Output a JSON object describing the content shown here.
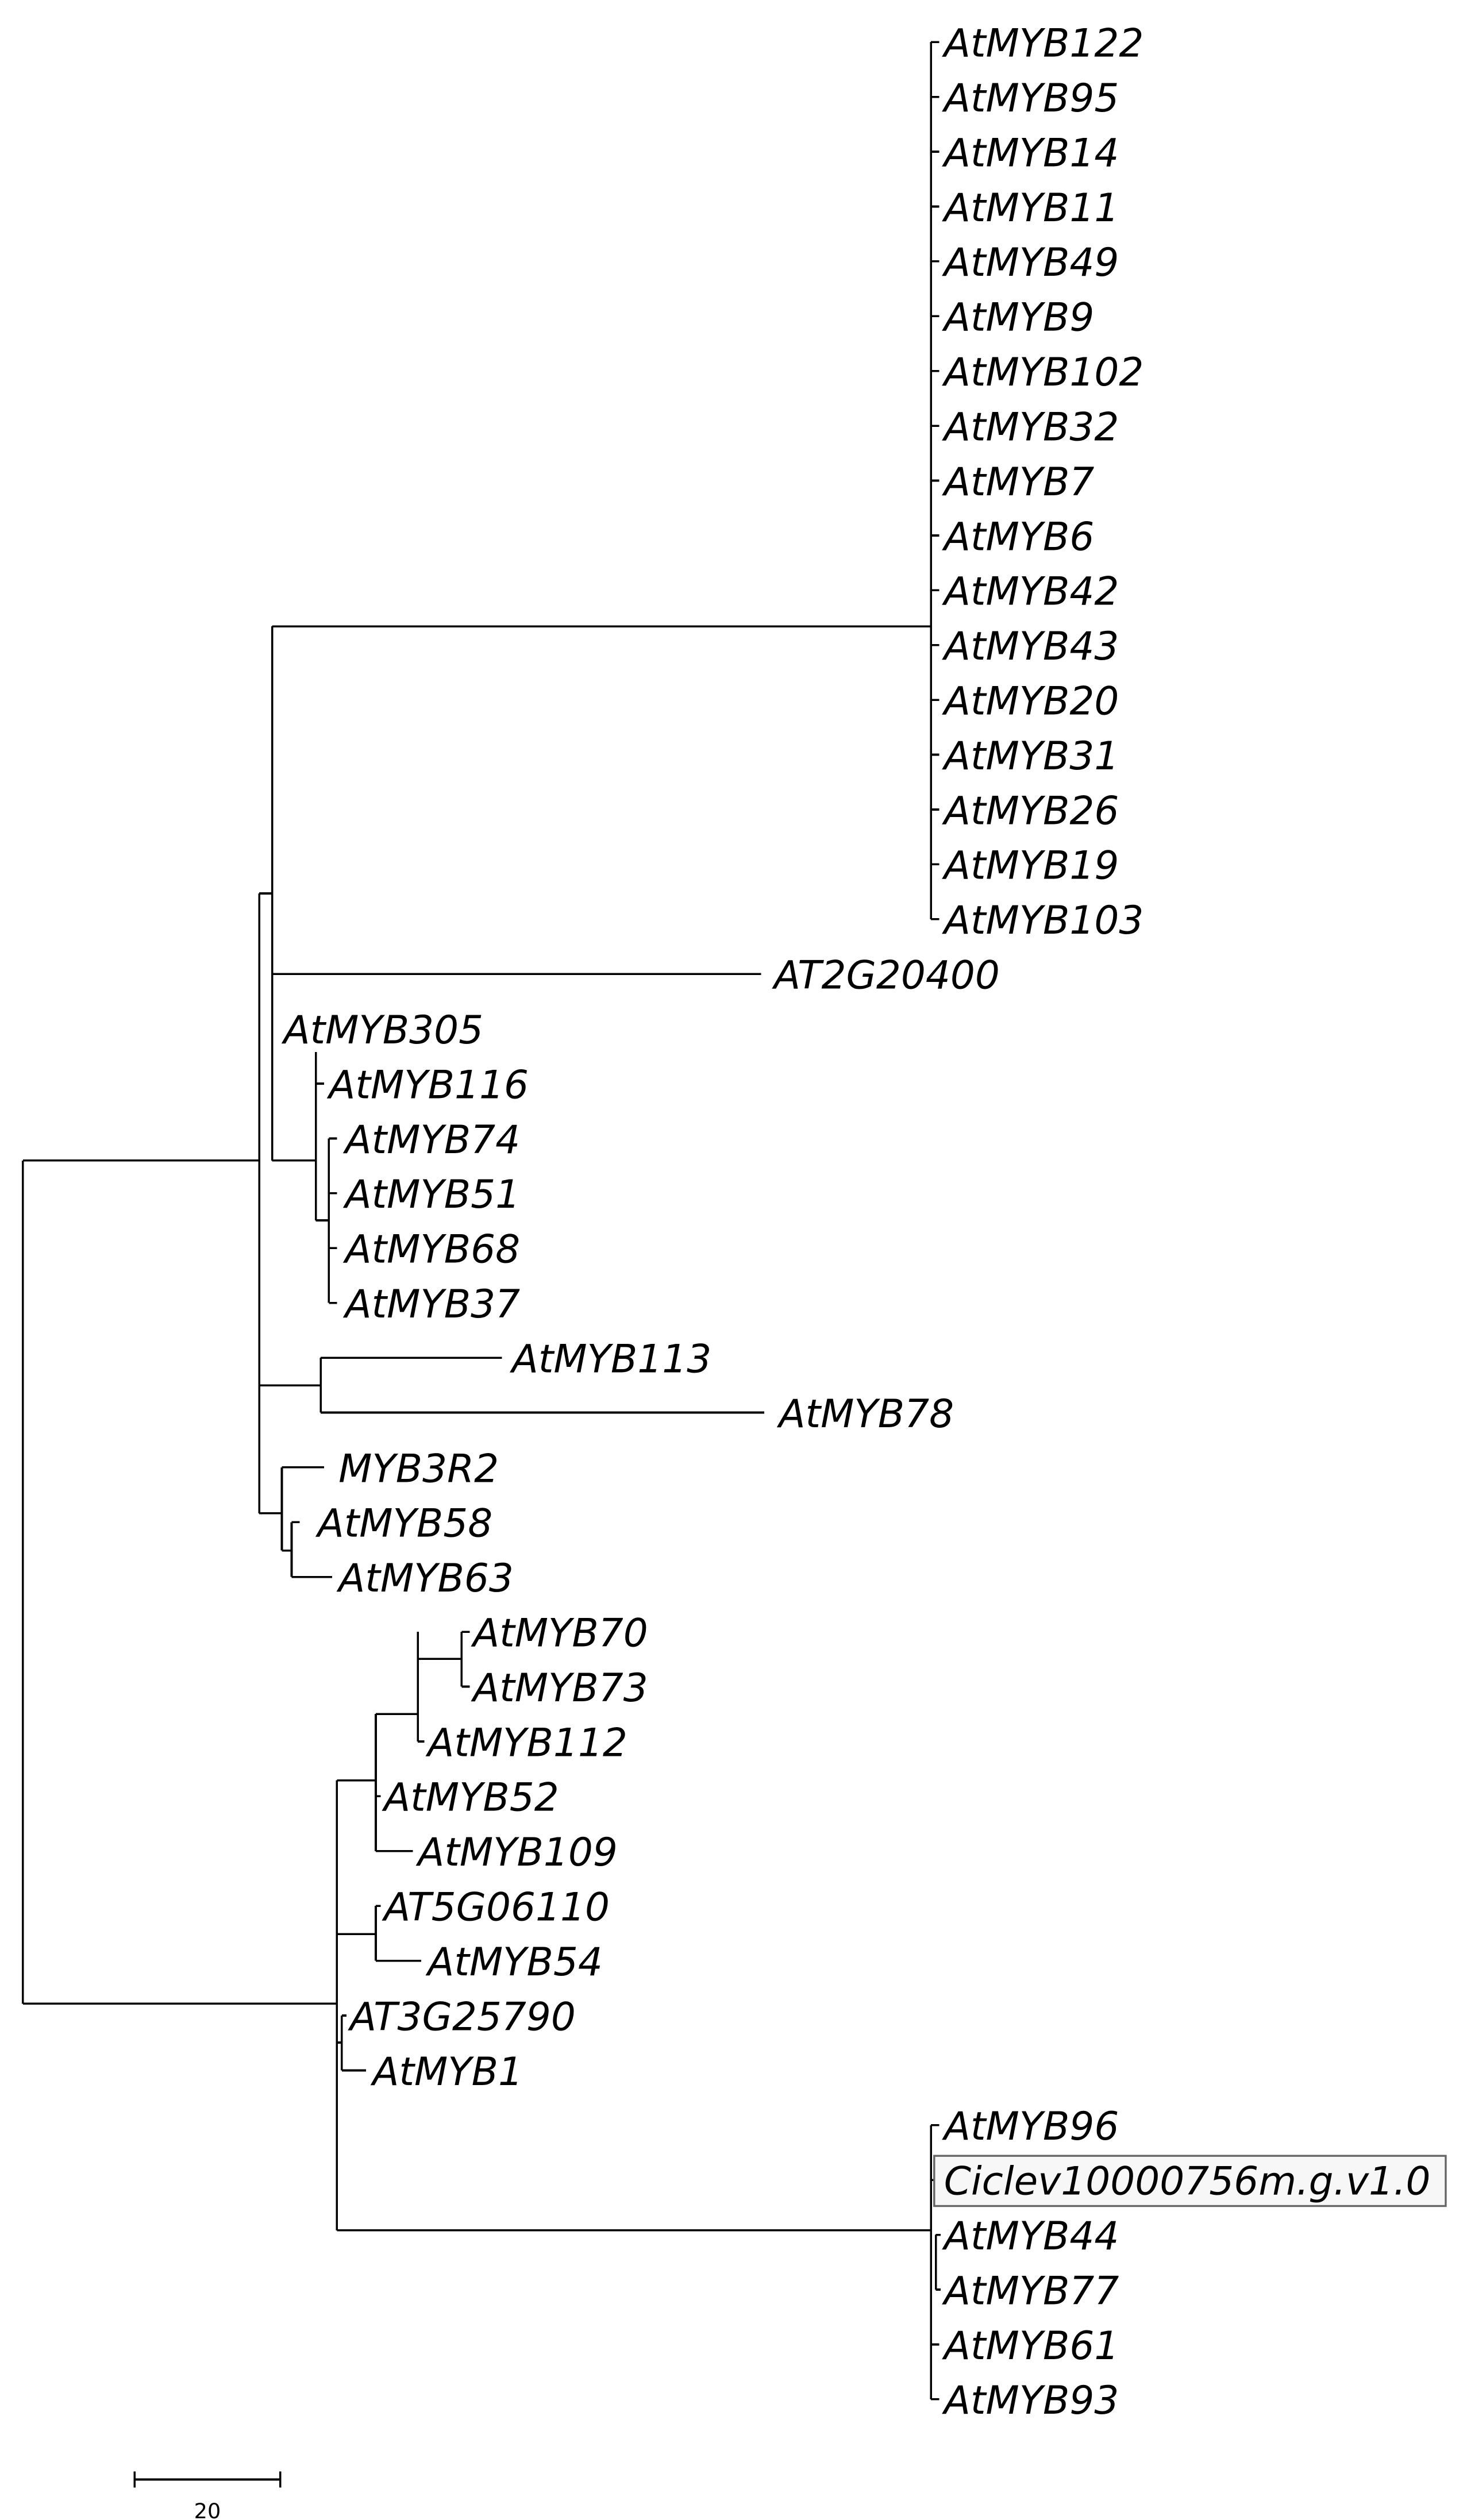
{
  "tree": {
    "leaves": [
      "AtMYB122",
      "AtMYB95",
      "AtMYB14",
      "AtMYB11",
      "AtMYB49",
      "AtMYB9",
      "AtMYB102",
      "AtMYB32",
      "AtMYB7",
      "AtMYB6",
      "AtMYB42",
      "AtMYB43",
      "AtMYB20",
      "AtMYB31",
      "AtMYB26",
      "AtMYB19",
      "AtMYB103",
      "AT2G20400",
      "AtMYB305",
      "AtMYB116",
      "AtMYB74",
      "AtMYB51",
      "AtMYB68",
      "AtMYB37",
      "AtMYB113",
      "AtMYB78",
      "MYB3R2",
      "AtMYB58",
      "AtMYB63",
      "AtMYB70",
      "AtMYB73",
      "AtMYB112",
      "AtMYB52",
      "AtMYB109",
      "AT5G06110",
      "AtMYB54",
      "AT3G25790",
      "AtMYB1",
      "AtMYB96",
      "Ciclev10000756m.g.v1.0",
      "AtMYB44",
      "AtMYB77",
      "AtMYB61",
      "AtMYB93"
    ],
    "highlighted_leaf": "Ciclev10000756m.g.v1.0"
  },
  "scale_bar": {
    "label": "20"
  }
}
